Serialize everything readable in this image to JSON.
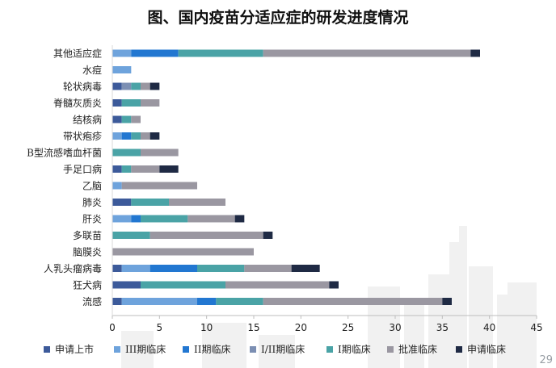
{
  "page_number": "29",
  "chart_data": {
    "type": "bar",
    "orientation": "horizontal",
    "stacked": true,
    "title": "图、国内疫苗分适应症的研发进度情况",
    "xlabel": "",
    "ylabel": "",
    "xlim": [
      0,
      45
    ],
    "x_ticks": [
      0,
      5,
      10,
      15,
      20,
      25,
      30,
      35,
      40,
      45
    ],
    "grid": false,
    "legend_position": "bottom",
    "categories": [
      "其他适应症",
      "水痘",
      "轮状病毒",
      "脊髓灰质炎",
      "结核病",
      "带状疱疹",
      "B型流感嗜血杆菌",
      "手足口病",
      "乙脑",
      "肺炎",
      "肝炎",
      "多联苗",
      "脑膜炎",
      "人乳头瘤病毒",
      "狂犬病",
      "流感"
    ],
    "series": [
      {
        "name": "申请上市",
        "color": "#3c5a9a",
        "values": [
          0,
          0,
          1,
          1,
          1,
          0,
          0,
          1,
          0,
          2,
          0,
          0,
          0,
          1,
          3,
          1
        ]
      },
      {
        "name": "III期临床",
        "color": "#6ea3dc",
        "values": [
          2,
          2,
          0,
          0,
          0,
          1,
          0,
          0,
          1,
          0,
          2,
          0,
          0,
          3,
          0,
          8
        ]
      },
      {
        "name": "II期临床",
        "color": "#2277d1",
        "values": [
          5,
          0,
          0,
          0,
          0,
          1,
          0,
          0,
          0,
          0,
          1,
          0,
          0,
          5,
          0,
          2
        ]
      },
      {
        "name": "I/II期临床",
        "color": "#7c8fb3",
        "values": [
          0,
          0,
          1,
          0,
          0,
          0,
          0,
          0,
          0,
          0,
          0,
          0,
          0,
          0,
          0,
          0
        ]
      },
      {
        "name": "I期临床",
        "color": "#4aa3a6",
        "values": [
          9,
          0,
          1,
          2,
          1,
          1,
          3,
          1,
          0,
          4,
          5,
          4,
          0,
          5,
          9,
          5
        ]
      },
      {
        "name": "批准临床",
        "color": "#9a97a1",
        "values": [
          22,
          0,
          1,
          2,
          1,
          1,
          4,
          3,
          8,
          6,
          5,
          12,
          15,
          5,
          11,
          19
        ]
      },
      {
        "name": "申请临床",
        "color": "#1f2a44",
        "values": [
          1,
          0,
          1,
          0,
          0,
          1,
          0,
          2,
          0,
          0,
          1,
          1,
          0,
          3,
          1,
          1
        ]
      }
    ]
  }
}
